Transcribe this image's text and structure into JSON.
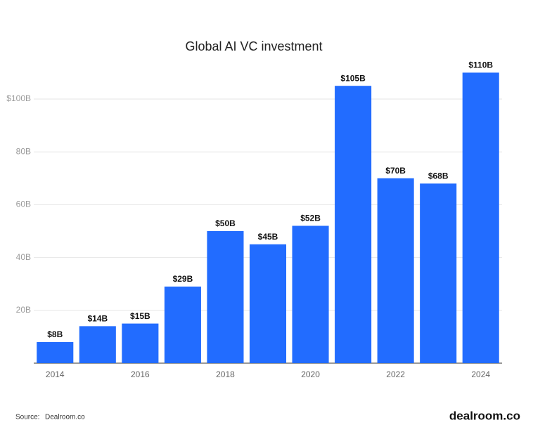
{
  "chart_data": {
    "type": "bar",
    "title": "Global AI VC investment",
    "categories": [
      "2014",
      null,
      "2016",
      null,
      "2018",
      null,
      "2020",
      null,
      "2022",
      null,
      "2024"
    ],
    "values": [
      8,
      14,
      15,
      29,
      50,
      45,
      52,
      105,
      70,
      68,
      110
    ],
    "value_labels": [
      "$8B",
      "$14B",
      "$15B",
      "$29B",
      "$50B",
      "$45B",
      "$52B",
      "$105B",
      "$70B",
      "$68B",
      "$110B"
    ],
    "color": "#226cff",
    "ylim": [
      0,
      115
    ],
    "yticks": [
      {
        "value": 20,
        "label": "20B"
      },
      {
        "value": 40,
        "label": "40B"
      },
      {
        "value": 60,
        "label": "60B"
      },
      {
        "value": 80,
        "label": "80B"
      },
      {
        "value": 100,
        "label": "$100B"
      }
    ],
    "grid": true
  },
  "footer": {
    "source_label": "Source:",
    "source": "Dealroom.co",
    "logo": "dealroom.co"
  }
}
